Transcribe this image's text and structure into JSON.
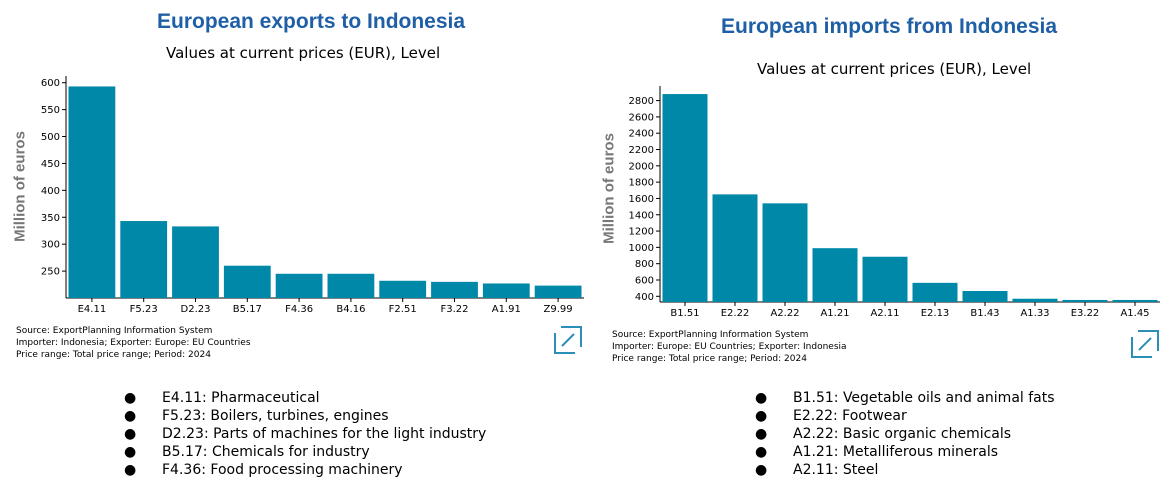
{
  "colors": {
    "bar": "#0088a8",
    "title": "#1f5fa6",
    "axis_label": "#777777",
    "logo": "#2c8fb8"
  },
  "left": {
    "title": "European exports to Indonesia",
    "source_lines": [
      "Source: ExportPlanning Information System",
      "Importer: Indonesia; Exporter: Europe: EU Countries",
      "Price range: Total price range; Period: 2024"
    ],
    "legend": [
      "E4.11: Pharmaceutical",
      "F5.23: Boilers, turbines, engines",
      "D2.23: Parts of machines for the light industry",
      "B5.17: Chemicals for industry",
      "F4.36: Food processing machinery"
    ]
  },
  "right": {
    "title": "European imports from Indonesia",
    "source_lines": [
      "Source: ExportPlanning Information System",
      "Importer: Europe: EU Countries; Exporter: Indonesia",
      "Price range: Total price range; Period: 2024"
    ],
    "legend": [
      "B1.51: Vegetable oils and animal fats",
      "E2.22: Footwear",
      "A2.22: Basic organic chemicals",
      "A1.21: Metalliferous minerals",
      "A2.11: Steel"
    ]
  },
  "legend_bullet": "●",
  "chart_data": [
    {
      "type": "bar",
      "title": "Values at current prices (EUR), Level",
      "ylabel": "Million of euros",
      "categories": [
        "E4.11",
        "F5.23",
        "D2.23",
        "B5.17",
        "F4.36",
        "B4.16",
        "F2.51",
        "F3.22",
        "A1.91",
        "Z9.99"
      ],
      "values": [
        593,
        343,
        333,
        260,
        245,
        245,
        232,
        230,
        227,
        223
      ],
      "ylim": [
        200,
        605
      ],
      "yticks": [
        250,
        300,
        350,
        400,
        450,
        500,
        550,
        600
      ],
      "grid": false
    },
    {
      "type": "bar",
      "title": "Values at current prices (EUR), Level",
      "ylabel": "Million of euros",
      "categories": [
        "B1.51",
        "E2.22",
        "A2.22",
        "A1.21",
        "A2.11",
        "E2.13",
        "B1.43",
        "A1.33",
        "E3.22",
        "A1.45"
      ],
      "values": [
        2880,
        1650,
        1540,
        990,
        885,
        565,
        465,
        370,
        355,
        355
      ],
      "ylim": [
        330,
        2930
      ],
      "yticks": [
        400,
        600,
        800,
        1000,
        1200,
        1400,
        1600,
        1800,
        2000,
        2200,
        2400,
        2600,
        2800
      ],
      "grid": false
    }
  ]
}
